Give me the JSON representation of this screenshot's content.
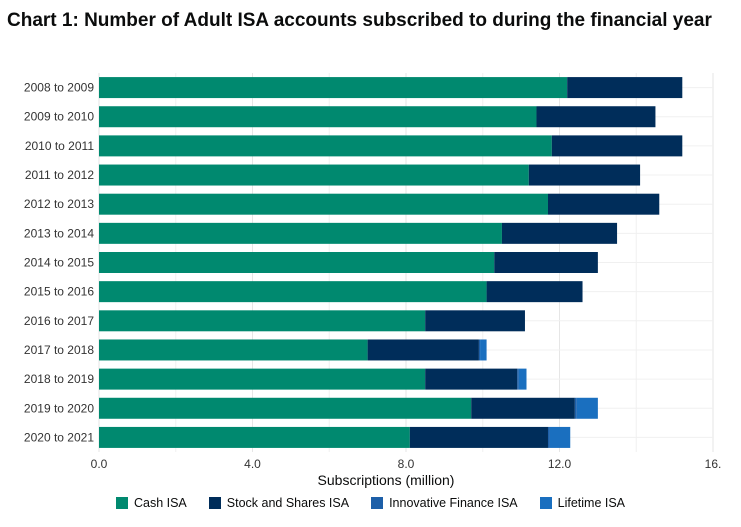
{
  "title": "Chart 1: Number of Adult ISA accounts subscribed to during the financial year",
  "chart_data": {
    "type": "bar",
    "orientation": "horizontal",
    "stacked": true,
    "title": "Chart 1: Number of Adult ISA accounts subscribed to during the financial year",
    "xlabel": "Subscriptions (million)",
    "ylabel": "",
    "xlim": [
      0,
      16
    ],
    "xticks": [
      "0.0",
      "4.0",
      "8.0",
      "12.0",
      "16."
    ],
    "grid": true,
    "legend_position": "bottom",
    "categories": [
      "2008 to 2009",
      "2009 to 2010",
      "2010 to 2011",
      "2011 to 2012",
      "2012 to 2013",
      "2013 to 2014",
      "2014 to 2015",
      "2015 to 2016",
      "2016 to 2017",
      "2017 to 2018",
      "2018 to 2019",
      "2019 to 2020",
      "2020 to 2021"
    ],
    "series": [
      {
        "name": "Cash ISA",
        "color": "#00896f",
        "values": [
          12.2,
          11.4,
          11.8,
          11.2,
          11.7,
          10.5,
          10.3,
          10.1,
          8.5,
          7.0,
          8.5,
          9.7,
          8.1
        ]
      },
      {
        "name": "Stock and Shares ISA",
        "color": "#002d5a",
        "values": [
          3.0,
          3.1,
          3.4,
          2.9,
          2.9,
          3.0,
          2.7,
          2.5,
          2.6,
          2.9,
          2.4,
          2.7,
          3.6
        ]
      },
      {
        "name": "Innovative Finance ISA",
        "color": "#1d5fa8",
        "values": [
          0,
          0,
          0,
          0,
          0,
          0,
          0,
          0,
          0,
          0.03,
          0.04,
          0.05,
          0.05
        ]
      },
      {
        "name": "Lifetime ISA",
        "color": "#1a6fbf",
        "values": [
          0,
          0,
          0,
          0,
          0,
          0,
          0,
          0,
          0,
          0.17,
          0.2,
          0.55,
          0.53
        ]
      }
    ]
  }
}
